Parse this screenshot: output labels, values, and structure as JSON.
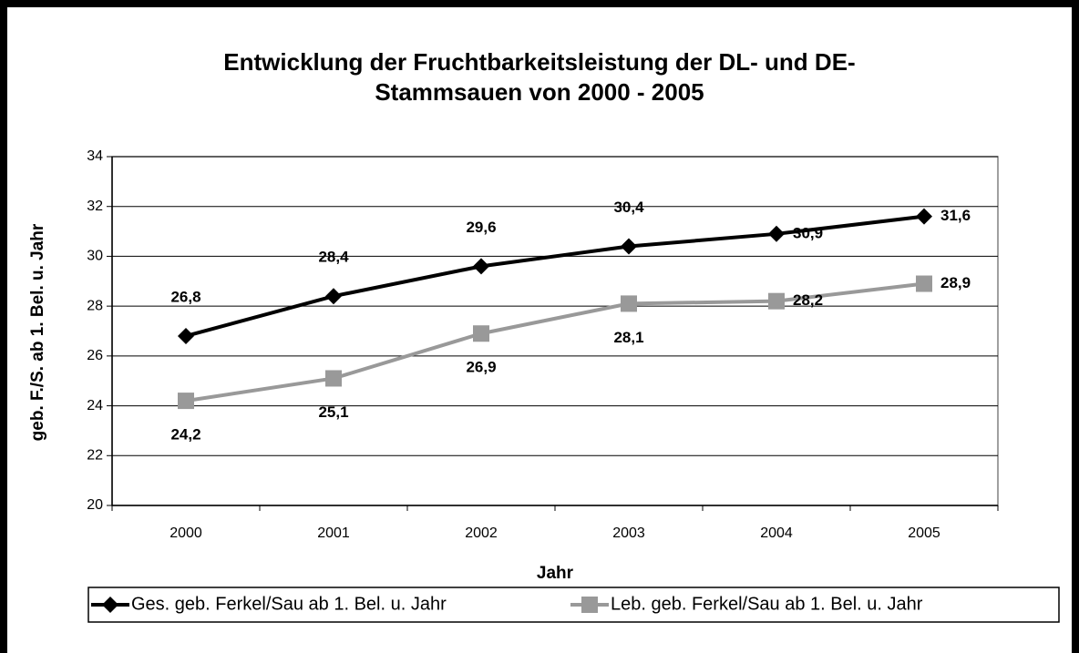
{
  "chart_data": {
    "type": "line",
    "title": "Entwicklung der Fruchtbarkeitsleistung der DL- und DE-Stammsauen von 2000 - 2005",
    "xlabel": "Jahr",
    "ylabel": "geb. F./S. ab 1. Bel. u. Jahr",
    "categories": [
      "2000",
      "2001",
      "2002",
      "2003",
      "2004",
      "2005"
    ],
    "ylim": [
      20,
      34
    ],
    "yticks": [
      20,
      22,
      24,
      26,
      28,
      30,
      32,
      34
    ],
    "grid": true,
    "legend": "bottom",
    "series": [
      {
        "name": "Ges. geb. Ferkel/Sau ab 1. Bel. u. Jahr",
        "color": "#000000",
        "marker": "diamond",
        "values": [
          26.8,
          28.4,
          29.6,
          30.4,
          30.9,
          31.6
        ],
        "value_labels": [
          "26,8",
          "28,4",
          "29,6",
          "30,4",
          "30,9",
          "31,6"
        ]
      },
      {
        "name": "Leb. geb. Ferkel/Sau ab 1. Bel. u. Jahr",
        "color": "#999999",
        "marker": "square",
        "values": [
          24.2,
          25.1,
          26.9,
          28.1,
          28.2,
          28.9
        ],
        "value_labels": [
          "24,2",
          "25,1",
          "26,9",
          "28,1",
          "28,2",
          "28,9"
        ]
      }
    ]
  }
}
